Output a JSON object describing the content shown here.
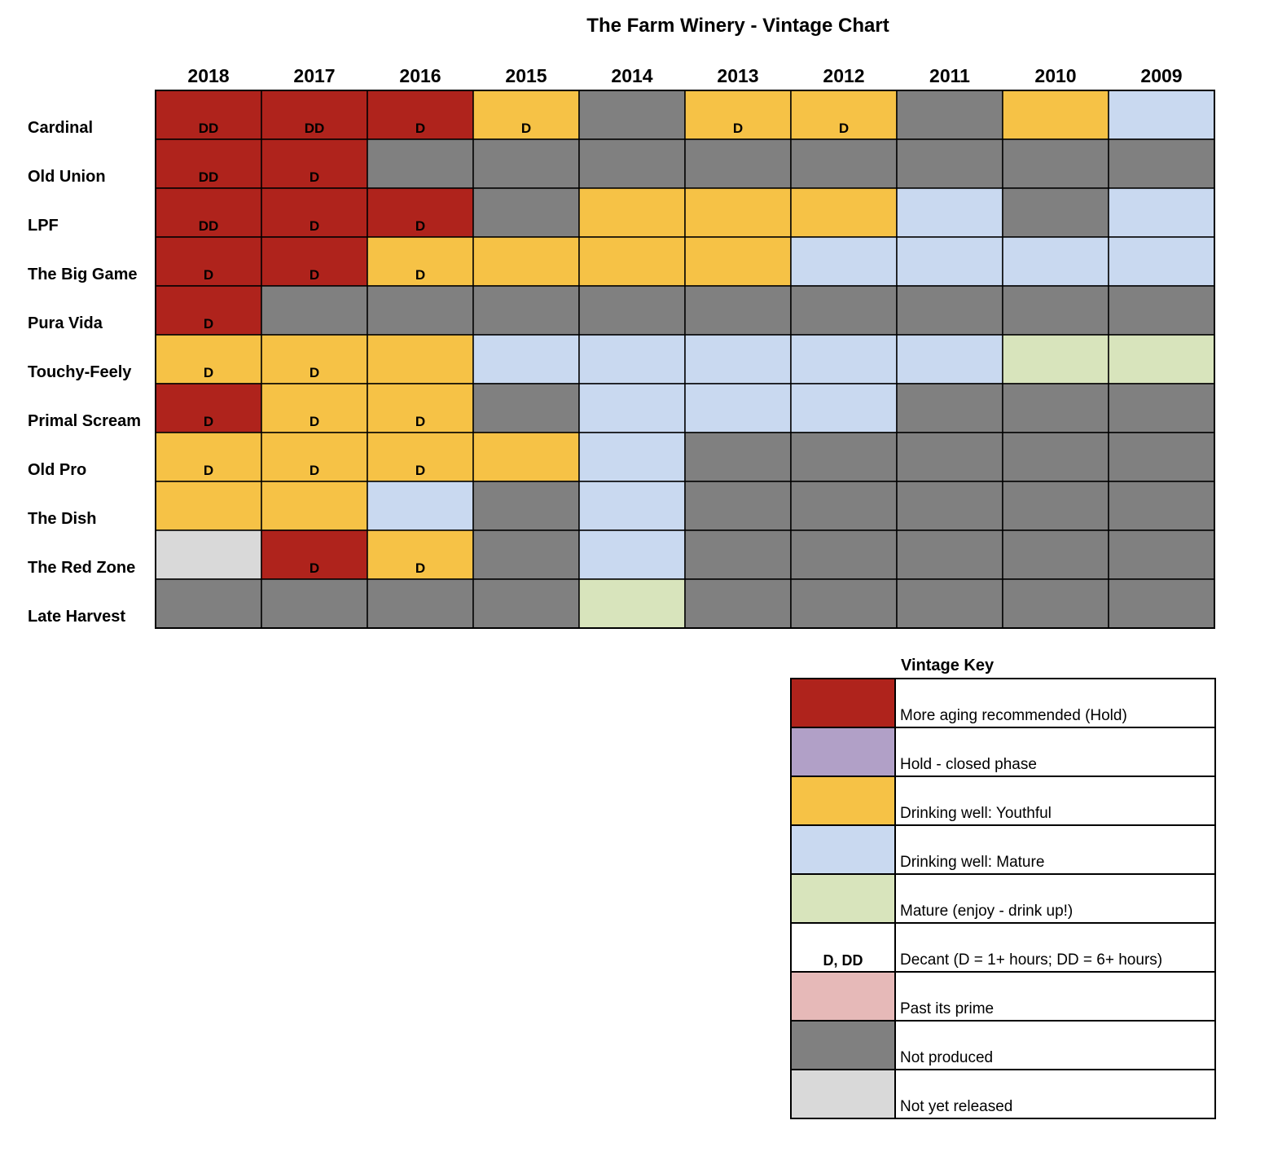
{
  "title": "The Farm Winery - Vintage Chart",
  "colors": {
    "hold": "#AF231C",
    "closed": "#B1A0C7",
    "youthful": "#F6C246",
    "mature": "#C9D9F0",
    "drink_up": "#D8E4BC",
    "decant": "#FFFFFF",
    "past": "#E6B9B8",
    "none": "#808080",
    "unreleased": "#D9D9D9"
  },
  "chart_data": {
    "type": "heatmap",
    "title": "The Farm Winery - Vintage Chart",
    "columns": [
      "2018",
      "2017",
      "2016",
      "2015",
      "2014",
      "2013",
      "2012",
      "2011",
      "2010",
      "2009"
    ],
    "rows": [
      {
        "name": "Cardinal",
        "status": [
          "hold",
          "hold",
          "hold",
          "youthful",
          "none",
          "youthful",
          "youthful",
          "none",
          "youthful",
          "mature"
        ],
        "decant": [
          "DD",
          "DD",
          "D",
          "D",
          "",
          "D",
          "D",
          "",
          "",
          ""
        ]
      },
      {
        "name": "Old Union",
        "status": [
          "hold",
          "hold",
          "none",
          "none",
          "none",
          "none",
          "none",
          "none",
          "none",
          "none"
        ],
        "decant": [
          "DD",
          "D",
          "",
          "",
          "",
          "",
          "",
          "",
          "",
          ""
        ]
      },
      {
        "name": "LPF",
        "status": [
          "hold",
          "hold",
          "hold",
          "none",
          "youthful",
          "youthful",
          "youthful",
          "mature",
          "none",
          "mature"
        ],
        "decant": [
          "DD",
          "D",
          "D",
          "",
          "",
          "",
          "",
          "",
          "",
          ""
        ]
      },
      {
        "name": "The Big Game",
        "status": [
          "hold",
          "hold",
          "youthful",
          "youthful",
          "youthful",
          "youthful",
          "mature",
          "mature",
          "mature",
          "mature"
        ],
        "decant": [
          "D",
          "D",
          "D",
          "",
          "",
          "",
          "",
          "",
          "",
          ""
        ]
      },
      {
        "name": "Pura Vida",
        "status": [
          "hold",
          "none",
          "none",
          "none",
          "none",
          "none",
          "none",
          "none",
          "none",
          "none"
        ],
        "decant": [
          "D",
          "",
          "",
          "",
          "",
          "",
          "",
          "",
          "",
          ""
        ]
      },
      {
        "name": "Touchy-Feely",
        "status": [
          "youthful",
          "youthful",
          "youthful",
          "mature",
          "mature",
          "mature",
          "mature",
          "mature",
          "drink_up",
          "drink_up"
        ],
        "decant": [
          "D",
          "D",
          "",
          "",
          "",
          "",
          "",
          "",
          "",
          ""
        ]
      },
      {
        "name": "Primal Scream",
        "status": [
          "hold",
          "youthful",
          "youthful",
          "none",
          "mature",
          "mature",
          "mature",
          "none",
          "none",
          "none"
        ],
        "decant": [
          "D",
          "D",
          "D",
          "",
          "",
          "",
          "",
          "",
          "",
          ""
        ]
      },
      {
        "name": "Old Pro",
        "status": [
          "youthful",
          "youthful",
          "youthful",
          "youthful",
          "mature",
          "none",
          "none",
          "none",
          "none",
          "none"
        ],
        "decant": [
          "D",
          "D",
          "D",
          "",
          "",
          "",
          "",
          "",
          "",
          ""
        ]
      },
      {
        "name": "The Dish",
        "status": [
          "youthful",
          "youthful",
          "mature",
          "none",
          "mature",
          "none",
          "none",
          "none",
          "none",
          "none"
        ],
        "decant": [
          "",
          "",
          "",
          "",
          "",
          "",
          "",
          "",
          "",
          ""
        ]
      },
      {
        "name": "The Red Zone",
        "status": [
          "unreleased",
          "hold",
          "youthful",
          "none",
          "mature",
          "none",
          "none",
          "none",
          "none",
          "none"
        ],
        "decant": [
          "",
          "D",
          "D",
          "",
          "",
          "",
          "",
          "",
          "",
          ""
        ]
      },
      {
        "name": "Late Harvest",
        "status": [
          "none",
          "none",
          "none",
          "none",
          "drink_up",
          "none",
          "none",
          "none",
          "none",
          "none"
        ],
        "decant": [
          "",
          "",
          "",
          "",
          "",
          "",
          "",
          "",
          "",
          ""
        ]
      }
    ]
  },
  "legend": {
    "title": "Vintage Key",
    "items": [
      {
        "key": "hold",
        "swatch_text": "",
        "label": "More aging recommended (Hold)"
      },
      {
        "key": "closed",
        "swatch_text": "",
        "label": "Hold - closed phase"
      },
      {
        "key": "youthful",
        "swatch_text": "",
        "label": "Drinking well: Youthful"
      },
      {
        "key": "mature",
        "swatch_text": "",
        "label": "Drinking well: Mature"
      },
      {
        "key": "drink_up",
        "swatch_text": "",
        "label": "Mature (enjoy - drink up!)"
      },
      {
        "key": "decant",
        "swatch_text": "D, DD",
        "label": "Decant (D = 1+ hours; DD = 6+ hours)"
      },
      {
        "key": "past",
        "swatch_text": "",
        "label": "Past its prime"
      },
      {
        "key": "none",
        "swatch_text": "",
        "label": "Not produced"
      },
      {
        "key": "unreleased",
        "swatch_text": "",
        "label": "Not yet released"
      }
    ]
  }
}
